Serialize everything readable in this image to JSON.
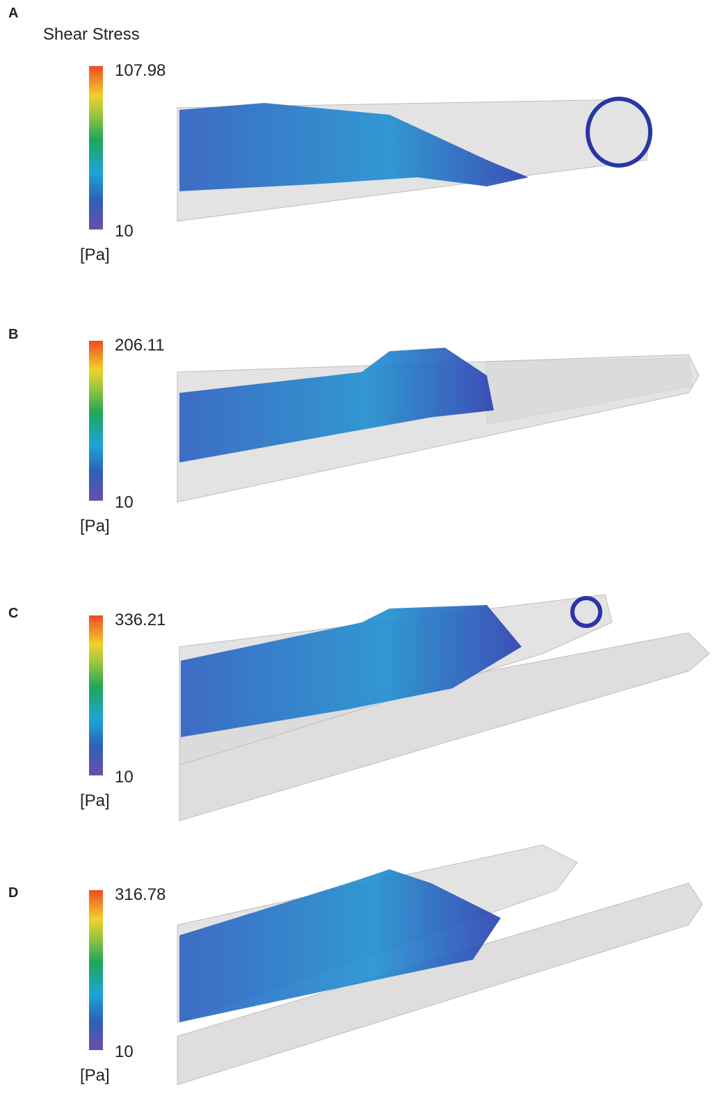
{
  "figure": {
    "title": "Shear Stress",
    "panels": [
      {
        "label": "A",
        "max": "107.98",
        "min": "10",
        "unit": "[Pa]"
      },
      {
        "label": "B",
        "max": "206.11",
        "min": "10",
        "unit": "[Pa]"
      },
      {
        "label": "C",
        "max": "336.21",
        "min": "10",
        "unit": "[Pa]"
      },
      {
        "label": "D",
        "max": "316.78",
        "min": "10",
        "unit": "[Pa]"
      }
    ]
  }
}
